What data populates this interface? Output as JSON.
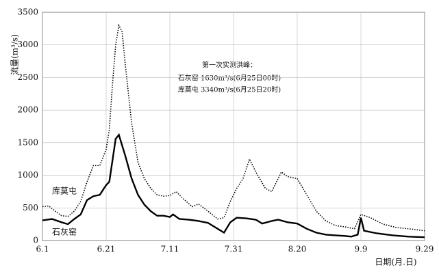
{
  "chart_data": {
    "type": "line",
    "y_label": "流量(m³/s)",
    "x_label": "日期(月.日)",
    "annotations": [
      "第一次实测洪峰：",
      "石灰窑 1630m³/s(6月25日00时)",
      "库莫屯 3340m³/s(6月25日20时)"
    ],
    "xlim": [
      "6.1",
      "9.29"
    ],
    "xticks": [
      "6.1",
      "6.21",
      "7.11",
      "7.31",
      "8.20",
      "9.9",
      "9.29"
    ],
    "ylim": [
      0,
      3500
    ],
    "yticks": [
      0,
      500,
      1000,
      1500,
      2000,
      2500,
      3000,
      3500
    ],
    "grid": true,
    "series": [
      {
        "name": "库莫屯",
        "color": "#000000",
        "style": "dotted",
        "x": [
          "6.1",
          "6.3",
          "6.5",
          "6.7",
          "6.9",
          "6.11",
          "6.13",
          "6.15",
          "6.17",
          "6.19",
          "6.21",
          "6.22",
          "6.23",
          "6.24",
          "6.25",
          "6.26",
          "6.27",
          "6.29",
          "7.1",
          "7.3",
          "7.5",
          "7.7",
          "7.9",
          "7.11",
          "7.13",
          "7.15",
          "7.18",
          "7.20",
          "7.23",
          "7.26",
          "7.28",
          "7.30",
          "8.1",
          "8.3",
          "8.5",
          "8.7",
          "8.10",
          "8.12",
          "8.15",
          "8.17",
          "8.20",
          "8.23",
          "8.26",
          "8.29",
          "9.1",
          "9.4",
          "9.7",
          "9.9",
          "9.12",
          "9.16",
          "9.20",
          "9.24",
          "9.29"
        ],
        "values": [
          520,
          530,
          450,
          380,
          370,
          450,
          600,
          900,
          1150,
          1150,
          1400,
          1700,
          2400,
          3000,
          3300,
          3200,
          2700,
          1800,
          1200,
          950,
          800,
          700,
          680,
          690,
          750,
          650,
          520,
          560,
          450,
          330,
          350,
          600,
          800,
          950,
          1250,
          1050,
          800,
          750,
          1050,
          980,
          950,
          700,
          450,
          300,
          230,
          210,
          180,
          400,
          350,
          250,
          200,
          180,
          150
        ]
      },
      {
        "name": "石灰窑",
        "color": "#000000",
        "style": "solid",
        "x": [
          "6.1",
          "6.4",
          "6.7",
          "6.9",
          "6.11",
          "6.13",
          "6.15",
          "6.17",
          "6.19",
          "6.21",
          "6.22",
          "6.24",
          "6.25",
          "6.27",
          "6.29",
          "7.1",
          "7.3",
          "7.5",
          "7.7",
          "7.9",
          "7.11",
          "7.12",
          "7.14",
          "7.17",
          "7.20",
          "7.23",
          "7.26",
          "7.28",
          "7.30",
          "8.1",
          "8.4",
          "8.7",
          "8.9",
          "8.12",
          "8.14",
          "8.17",
          "8.20",
          "8.23",
          "8.26",
          "8.29",
          "9.1",
          "9.4",
          "9.6",
          "9.8",
          "9.9",
          "9.10",
          "9.14",
          "9.19",
          "9.24",
          "9.29"
        ],
        "values": [
          310,
          330,
          280,
          250,
          330,
          400,
          620,
          680,
          700,
          850,
          900,
          1560,
          1620,
          1300,
          950,
          700,
          550,
          450,
          380,
          380,
          360,
          400,
          330,
          320,
          300,
          270,
          180,
          120,
          280,
          350,
          340,
          320,
          260,
          300,
          320,
          280,
          260,
          180,
          120,
          90,
          80,
          70,
          60,
          90,
          350,
          150,
          110,
          80,
          60,
          50
        ]
      }
    ]
  }
}
